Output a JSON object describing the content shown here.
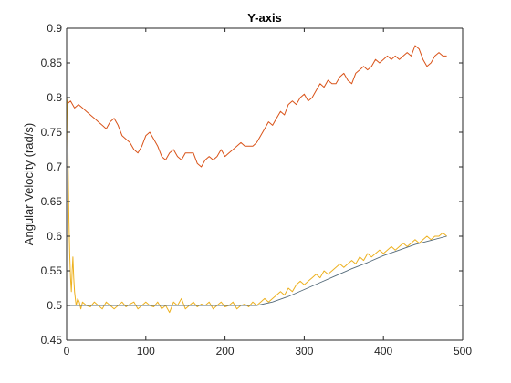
{
  "chart_data": {
    "type": "line",
    "title": "Y-axis",
    "xlabel": "",
    "ylabel": "Angular Velocity (rad/s)",
    "xlim": [
      0,
      500
    ],
    "ylim": [
      0.45,
      0.9
    ],
    "xticks": [
      0,
      100,
      200,
      300,
      400,
      500
    ],
    "yticks": [
      0.45,
      0.5,
      0.55,
      0.6,
      0.65,
      0.7,
      0.75,
      0.8,
      0.85,
      0.9
    ],
    "xtick_labels": [
      "0",
      "100",
      "200",
      "300",
      "400",
      "500"
    ],
    "ytick_labels": [
      "0.45",
      "0.5",
      "0.55",
      "0.6",
      "0.65",
      "0.7",
      "0.75",
      "0.8",
      "0.85",
      "0.9"
    ],
    "grid": false,
    "legend": "none",
    "series": [
      {
        "color": "#D95319",
        "x": [
          0,
          5,
          10,
          15,
          20,
          25,
          30,
          35,
          40,
          45,
          50,
          55,
          60,
          65,
          70,
          75,
          80,
          85,
          90,
          95,
          100,
          105,
          110,
          115,
          120,
          125,
          130,
          135,
          140,
          145,
          150,
          155,
          160,
          165,
          170,
          175,
          180,
          185,
          190,
          195,
          200,
          205,
          210,
          215,
          220,
          225,
          230,
          235,
          240,
          245,
          250,
          255,
          260,
          265,
          270,
          275,
          280,
          285,
          290,
          295,
          300,
          305,
          310,
          315,
          320,
          325,
          330,
          335,
          340,
          345,
          350,
          355,
          360,
          365,
          370,
          375,
          380,
          385,
          390,
          395,
          400,
          405,
          410,
          415,
          420,
          425,
          430,
          435,
          440,
          445,
          450,
          455,
          460,
          465,
          470,
          475,
          480
        ],
        "y": [
          0.79,
          0.795,
          0.785,
          0.79,
          0.785,
          0.78,
          0.775,
          0.77,
          0.765,
          0.76,
          0.755,
          0.765,
          0.77,
          0.76,
          0.745,
          0.74,
          0.735,
          0.725,
          0.72,
          0.73,
          0.745,
          0.75,
          0.74,
          0.73,
          0.715,
          0.71,
          0.72,
          0.725,
          0.715,
          0.71,
          0.72,
          0.72,
          0.72,
          0.705,
          0.7,
          0.71,
          0.715,
          0.71,
          0.715,
          0.725,
          0.715,
          0.72,
          0.725,
          0.73,
          0.735,
          0.73,
          0.73,
          0.73,
          0.735,
          0.745,
          0.755,
          0.765,
          0.76,
          0.77,
          0.78,
          0.775,
          0.79,
          0.795,
          0.79,
          0.8,
          0.805,
          0.795,
          0.8,
          0.81,
          0.82,
          0.815,
          0.825,
          0.82,
          0.82,
          0.83,
          0.835,
          0.825,
          0.82,
          0.835,
          0.84,
          0.845,
          0.84,
          0.845,
          0.855,
          0.85,
          0.855,
          0.86,
          0.855,
          0.86,
          0.855,
          0.86,
          0.865,
          0.86,
          0.875,
          0.87,
          0.855,
          0.845,
          0.85,
          0.86,
          0.865,
          0.86,
          0.86
        ]
      },
      {
        "color": "#EDB120",
        "x": [
          0,
          1,
          2,
          3,
          4,
          5,
          6,
          7,
          8,
          9,
          10,
          12,
          14,
          16,
          18,
          20,
          25,
          30,
          35,
          40,
          45,
          50,
          55,
          60,
          65,
          70,
          75,
          80,
          85,
          90,
          95,
          100,
          105,
          110,
          115,
          120,
          125,
          130,
          135,
          140,
          145,
          150,
          155,
          160,
          165,
          170,
          175,
          180,
          185,
          190,
          195,
          200,
          205,
          210,
          215,
          220,
          225,
          230,
          235,
          240,
          245,
          250,
          255,
          260,
          265,
          270,
          275,
          280,
          285,
          290,
          295,
          300,
          305,
          310,
          315,
          320,
          325,
          330,
          335,
          340,
          345,
          350,
          355,
          360,
          365,
          370,
          375,
          380,
          385,
          390,
          395,
          400,
          405,
          410,
          415,
          420,
          425,
          430,
          435,
          440,
          445,
          450,
          455,
          460,
          465,
          470,
          475,
          480
        ],
        "y": [
          0.8,
          0.79,
          0.7,
          0.62,
          0.57,
          0.54,
          0.52,
          0.55,
          0.57,
          0.54,
          0.52,
          0.5,
          0.51,
          0.505,
          0.495,
          0.505,
          0.5,
          0.498,
          0.505,
          0.5,
          0.495,
          0.505,
          0.5,
          0.495,
          0.5,
          0.505,
          0.498,
          0.502,
          0.505,
          0.495,
          0.5,
          0.505,
          0.5,
          0.498,
          0.505,
          0.495,
          0.5,
          0.49,
          0.505,
          0.5,
          0.51,
          0.495,
          0.5,
          0.505,
          0.498,
          0.502,
          0.5,
          0.505,
          0.495,
          0.5,
          0.505,
          0.498,
          0.5,
          0.505,
          0.495,
          0.5,
          0.502,
          0.498,
          0.505,
          0.5,
          0.505,
          0.51,
          0.505,
          0.51,
          0.515,
          0.52,
          0.515,
          0.525,
          0.52,
          0.53,
          0.535,
          0.53,
          0.535,
          0.54,
          0.545,
          0.54,
          0.55,
          0.545,
          0.55,
          0.555,
          0.56,
          0.555,
          0.56,
          0.565,
          0.56,
          0.57,
          0.565,
          0.575,
          0.57,
          0.575,
          0.58,
          0.575,
          0.58,
          0.585,
          0.58,
          0.585,
          0.59,
          0.585,
          0.59,
          0.595,
          0.59,
          0.595,
          0.6,
          0.595,
          0.6,
          0.6,
          0.605,
          0.6
        ]
      },
      {
        "color": "#556B7A",
        "x": [
          0,
          50,
          100,
          150,
          200,
          240,
          260,
          280,
          300,
          320,
          340,
          360,
          380,
          400,
          420,
          440,
          460,
          480
        ],
        "y": [
          0.5,
          0.5,
          0.5,
          0.5,
          0.5,
          0.5,
          0.505,
          0.513,
          0.523,
          0.533,
          0.543,
          0.553,
          0.562,
          0.572,
          0.58,
          0.588,
          0.594,
          0.6
        ]
      }
    ]
  }
}
